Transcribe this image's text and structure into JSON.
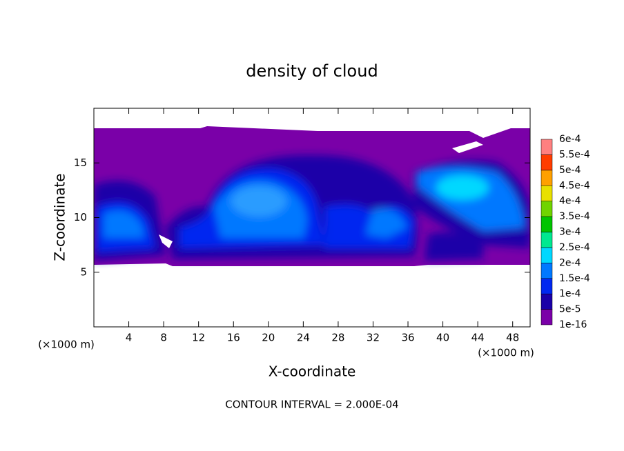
{
  "chart_data": {
    "type": "contour",
    "title": "density of cloud",
    "x_label": "X-coordinate",
    "y_label": "Z-coordinate",
    "x_unit": "(×1000 m)",
    "y_unit": "(×1000 m)",
    "note": "CONTOUR INTERVAL = 2.000E-04",
    "xlim": [
      0,
      50
    ],
    "ylim": [
      0,
      20
    ],
    "xticks": [
      4,
      8,
      12,
      16,
      20,
      24,
      28,
      32,
      36,
      40,
      44,
      48
    ],
    "yticks": [
      5,
      10,
      15
    ],
    "colorbar": {
      "levels": [
        {
          "value": 1e-16,
          "label": "1e-16"
        },
        {
          "value": 5e-05,
          "label": "5e-5"
        },
        {
          "value": 0.0001,
          "label": "1e-4"
        },
        {
          "value": 0.00015,
          "label": "1.5e-4"
        },
        {
          "value": 0.0002,
          "label": "2e-4"
        },
        {
          "value": 0.00025,
          "label": "2.5e-4"
        },
        {
          "value": 0.0003,
          "label": "3e-4"
        },
        {
          "value": 0.00035,
          "label": "3.5e-4"
        },
        {
          "value": 0.0004,
          "label": "4e-4"
        },
        {
          "value": 0.00045,
          "label": "4.5e-4"
        },
        {
          "value": 0.0005,
          "label": "5e-4"
        },
        {
          "value": 0.00055,
          "label": "5.5e-4"
        },
        {
          "value": 0.0006,
          "label": "6e-4"
        }
      ],
      "colors": [
        "#7a00a8",
        "#1a00a8",
        "#0028f0",
        "#0078ff",
        "#00d8ff",
        "#00e890",
        "#00c400",
        "#70d400",
        "#e8e000",
        "#ffa000",
        "#ff3c00",
        "#ff8080"
      ]
    }
  }
}
